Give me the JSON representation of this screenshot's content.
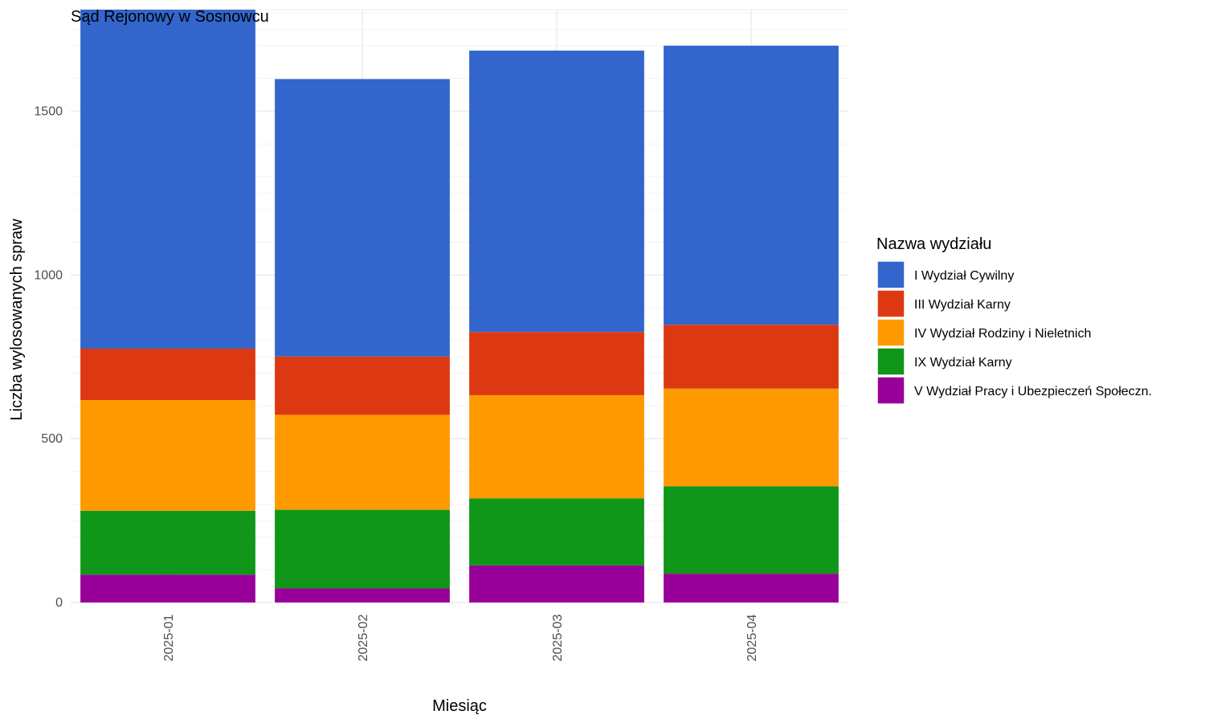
{
  "chart_data": {
    "type": "bar",
    "stacked": true,
    "title": "Sąd Rejonowy w Sosnowcu",
    "xlabel": "Miesiąc",
    "ylabel": "Liczba wylosowanych spraw",
    "categories": [
      "2025-01",
      "2025-02",
      "2025-03",
      "2025-04"
    ],
    "ylim": [
      0,
      1810
    ],
    "yticks": [
      0,
      500,
      1000,
      1500
    ],
    "y_tick_labels": [
      "0",
      "500",
      "1000",
      "1500"
    ],
    "grid": true,
    "legend": {
      "title": "Nazwa wydziału",
      "position": "right"
    },
    "series": [
      {
        "name": "V Wydział Pracy i Ubezpieczeń Społeczn.",
        "color": "#990099",
        "values": [
          85,
          43,
          113,
          88
        ]
      },
      {
        "name": "IX Wydział Karny",
        "color": "#109618",
        "values": [
          195,
          240,
          205,
          267
        ]
      },
      {
        "name": "IV Wydział Rodziny i Nieletnich",
        "color": "#FF9900",
        "values": [
          338,
          290,
          315,
          298
        ]
      },
      {
        "name": "III Wydział Karny",
        "color": "#DC3912",
        "values": [
          157,
          178,
          193,
          195
        ]
      },
      {
        "name": "I Wydział Cywilny",
        "color": "#3366CC",
        "values": [
          1035,
          847,
          859,
          852
        ]
      }
    ],
    "legend_order": [
      "I Wydział Cywilny",
      "III Wydział Karny",
      "IV Wydział Rodziny i Nieletnich",
      "IX Wydział Karny",
      "V Wydział Pracy i Ubezpieczeń Społeczn."
    ]
  }
}
